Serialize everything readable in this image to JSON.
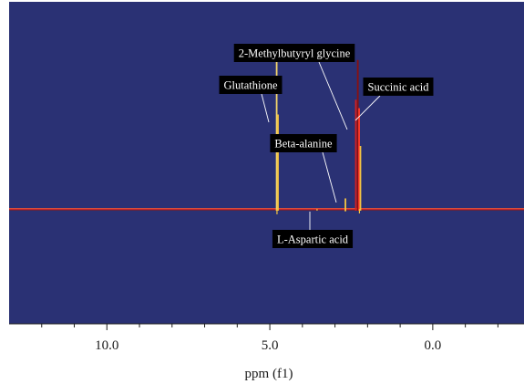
{
  "chart_data": {
    "type": "line",
    "xlabel": "ppm (f1)",
    "xlim": [
      13.0,
      -2.8
    ],
    "x_reversed": true,
    "xticks_major": [
      10.0,
      5.0,
      0.0
    ],
    "xtick_labels": [
      "10.0",
      "5.0",
      "0.0"
    ],
    "xticks_minor": [
      12,
      11,
      9,
      8,
      7,
      6,
      4,
      3,
      2,
      1,
      -1,
      -2
    ],
    "grid": false,
    "colors": {
      "background": "#2a3174",
      "baseline": "#d8262a",
      "peak_core": "#f5c542",
      "peak_red": "#e8352a",
      "label_box": "#000000",
      "label_text": "#ffffff",
      "leader_line": "#ffffff"
    },
    "series": [
      {
        "peaks": [
          {
            "x": 4.79,
            "y": 0.72,
            "color": "#f2d46a"
          },
          {
            "x": 4.75,
            "y": 0.45,
            "color": "#f5c542"
          },
          {
            "x": 2.68,
            "y": 0.05,
            "color": "#f5c542"
          },
          {
            "x": 2.36,
            "y": 0.52,
            "color": "#d51f1f"
          },
          {
            "x": 2.3,
            "y": 0.71,
            "color": "#8a1010"
          },
          {
            "x": 2.26,
            "y": 0.48,
            "color": "#ff3a2a"
          },
          {
            "x": 2.22,
            "y": 0.3,
            "color": "#f5c542"
          }
        ]
      }
    ],
    "annotations": [
      {
        "text": "Glutathione",
        "peak_x": 4.79
      },
      {
        "text": "2-Methylbutyryl glycine",
        "peak_x": 2.45
      },
      {
        "text": "Succinic acid",
        "peak_x": 2.28
      },
      {
        "text": "Beta-alanine",
        "peak_x": 2.68
      },
      {
        "text": "L-Aspartic acid",
        "peak_x": 3.55
      }
    ]
  }
}
